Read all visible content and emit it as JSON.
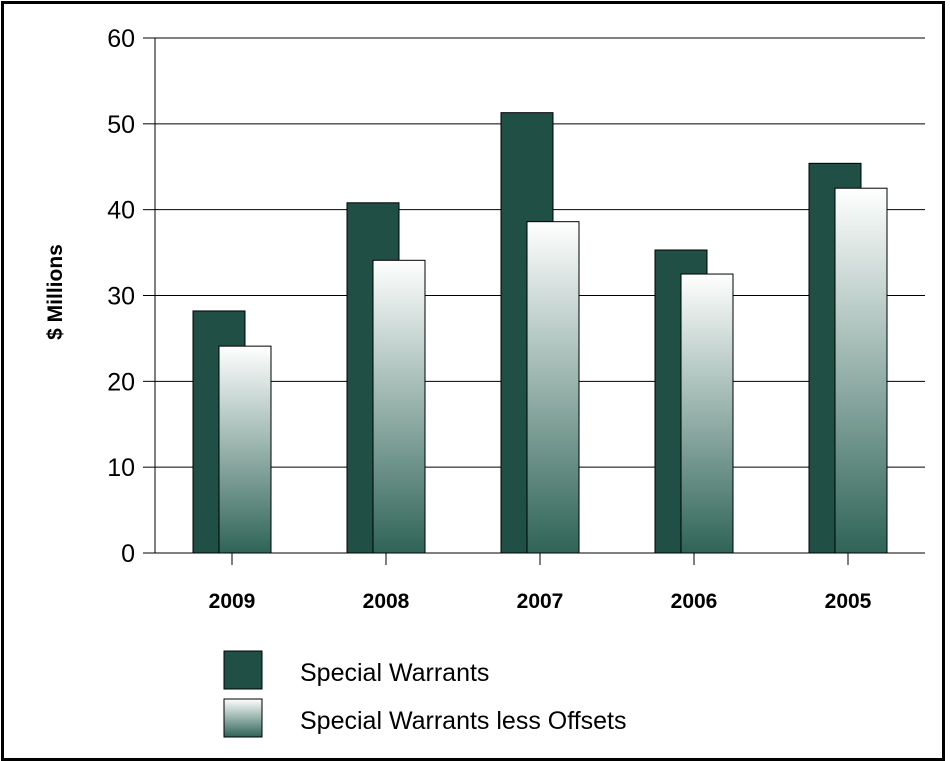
{
  "chart_data": {
    "type": "bar",
    "categories": [
      "2009",
      "2008",
      "2007",
      "2006",
      "2005"
    ],
    "series": [
      {
        "name": "Special Warrants",
        "values": [
          28.2,
          40.8,
          51.3,
          35.3,
          45.4
        ]
      },
      {
        "name": "Special Warrants less Offsets",
        "values": [
          24.1,
          34.1,
          38.6,
          32.5,
          42.5
        ]
      }
    ],
    "title": "",
    "xlabel": "",
    "ylabel": "$ Millions",
    "ylim": [
      0,
      60
    ],
    "yticks": [
      0,
      10,
      20,
      30,
      40,
      50,
      60
    ],
    "grid": true,
    "legend_position": "bottom",
    "colors": {
      "series1": "#1f4f45",
      "series2_top": "#ffffff",
      "series2_bottom": "#2f6457",
      "grid": "#000000"
    }
  }
}
